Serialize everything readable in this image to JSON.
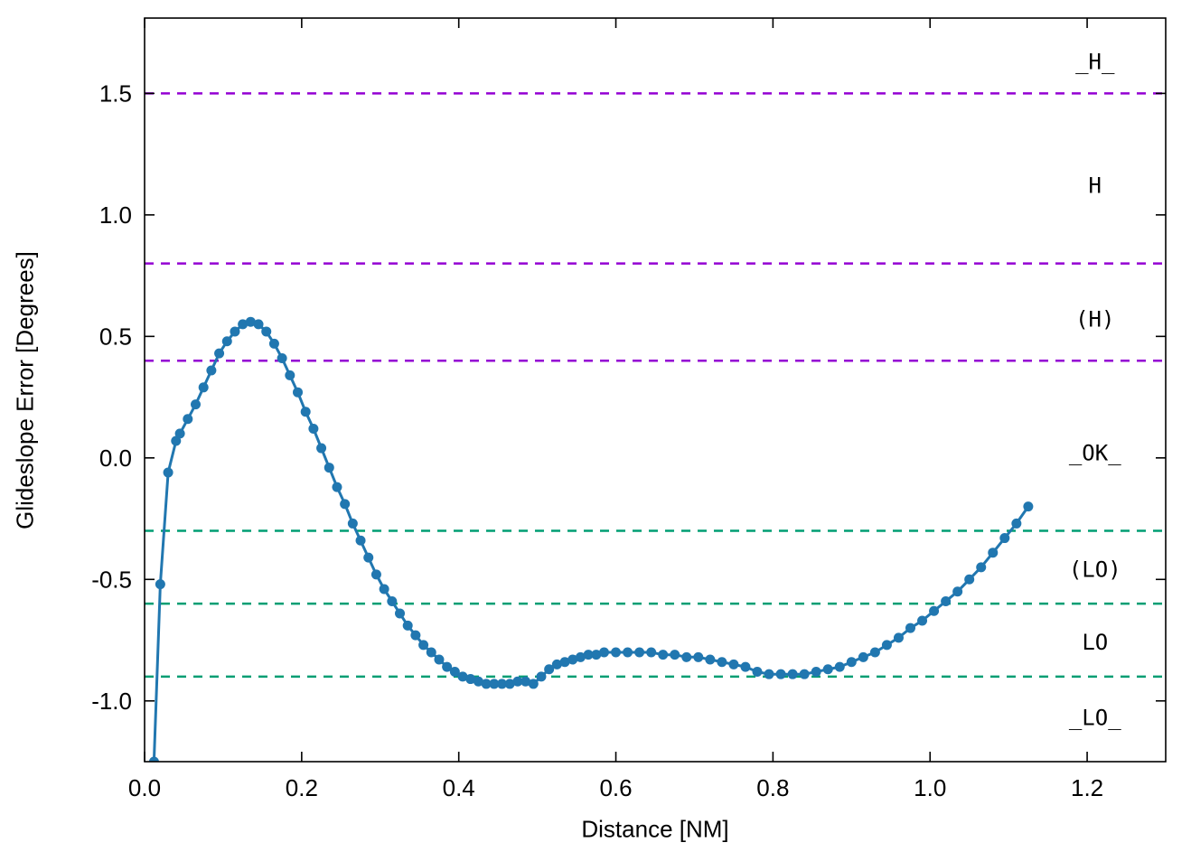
{
  "page": {
    "background": "#ffffff"
  },
  "chart_data": {
    "type": "line",
    "title": "",
    "xlabel": "Distance [NM]",
    "ylabel": "Glideslope Error [Degrees]",
    "xlim": [
      0,
      1.3
    ],
    "ylim": [
      -1.25,
      1.81
    ],
    "grid": false,
    "x_ticks": [
      {
        "v": 0.0,
        "label": "0.0"
      },
      {
        "v": 0.2,
        "label": "0.2"
      },
      {
        "v": 0.4,
        "label": "0.4"
      },
      {
        "v": 0.6,
        "label": "0.6"
      },
      {
        "v": 0.8,
        "label": "0.8"
      },
      {
        "v": 1.0,
        "label": "1.0"
      },
      {
        "v": 1.2,
        "label": "1.2"
      }
    ],
    "y_ticks": [
      {
        "v": -1.0,
        "label": "-1.0"
      },
      {
        "v": -0.5,
        "label": "-0.5"
      },
      {
        "v": 0.0,
        "label": "0.0"
      },
      {
        "v": 0.5,
        "label": "0.5"
      },
      {
        "v": 1.0,
        "label": "1.0"
      },
      {
        "v": 1.5,
        "label": "1.5"
      }
    ],
    "thresholds": [
      {
        "y": 1.5,
        "color": "#9400d3",
        "style": "dashed"
      },
      {
        "y": 0.8,
        "color": "#9400d3",
        "style": "dashed"
      },
      {
        "y": 0.4,
        "color": "#9400d3",
        "style": "dashed"
      },
      {
        "y": -0.3,
        "color": "#009e73",
        "style": "dashed"
      },
      {
        "y": -0.6,
        "color": "#009e73",
        "style": "dashed"
      },
      {
        "y": -0.9,
        "color": "#009e73",
        "style": "dashed"
      }
    ],
    "zone_labels": [
      {
        "text": "_H_",
        "x": 1.21,
        "y": 1.63
      },
      {
        "text": "H",
        "x": 1.21,
        "y": 1.12
      },
      {
        "text": "(H)",
        "x": 1.21,
        "y": 0.57
      },
      {
        "text": "_OK_",
        "x": 1.21,
        "y": 0.02
      },
      {
        "text": "(LO)",
        "x": 1.21,
        "y": -0.46
      },
      {
        "text": "LO",
        "x": 1.21,
        "y": -0.76
      },
      {
        "text": "_LO_",
        "x": 1.21,
        "y": -1.07
      }
    ],
    "series": [
      {
        "name": "glideslope-error",
        "color": "#2177b0",
        "marker": "circle",
        "points": [
          [
            0.012,
            -1.25
          ],
          [
            0.02,
            -0.52
          ],
          [
            0.03,
            -0.06
          ],
          [
            0.04,
            0.07
          ],
          [
            0.045,
            0.1
          ],
          [
            0.055,
            0.16
          ],
          [
            0.065,
            0.22
          ],
          [
            0.075,
            0.29
          ],
          [
            0.085,
            0.36
          ],
          [
            0.095,
            0.43
          ],
          [
            0.105,
            0.48
          ],
          [
            0.115,
            0.52
          ],
          [
            0.125,
            0.55
          ],
          [
            0.135,
            0.56
          ],
          [
            0.145,
            0.55
          ],
          [
            0.155,
            0.52
          ],
          [
            0.165,
            0.47
          ],
          [
            0.175,
            0.41
          ],
          [
            0.185,
            0.34
          ],
          [
            0.195,
            0.27
          ],
          [
            0.205,
            0.19
          ],
          [
            0.215,
            0.12
          ],
          [
            0.225,
            0.04
          ],
          [
            0.235,
            -0.04
          ],
          [
            0.245,
            -0.12
          ],
          [
            0.255,
            -0.19
          ],
          [
            0.265,
            -0.27
          ],
          [
            0.275,
            -0.34
          ],
          [
            0.285,
            -0.41
          ],
          [
            0.295,
            -0.48
          ],
          [
            0.305,
            -0.54
          ],
          [
            0.315,
            -0.59
          ],
          [
            0.325,
            -0.64
          ],
          [
            0.335,
            -0.69
          ],
          [
            0.345,
            -0.73
          ],
          [
            0.355,
            -0.77
          ],
          [
            0.365,
            -0.8
          ],
          [
            0.375,
            -0.83
          ],
          [
            0.385,
            -0.86
          ],
          [
            0.395,
            -0.88
          ],
          [
            0.405,
            -0.9
          ],
          [
            0.415,
            -0.91
          ],
          [
            0.425,
            -0.92
          ],
          [
            0.435,
            -0.93
          ],
          [
            0.445,
            -0.93
          ],
          [
            0.455,
            -0.93
          ],
          [
            0.465,
            -0.93
          ],
          [
            0.475,
            -0.92
          ],
          [
            0.485,
            -0.92
          ],
          [
            0.495,
            -0.93
          ],
          [
            0.505,
            -0.9
          ],
          [
            0.515,
            -0.87
          ],
          [
            0.525,
            -0.85
          ],
          [
            0.535,
            -0.84
          ],
          [
            0.545,
            -0.83
          ],
          [
            0.555,
            -0.82
          ],
          [
            0.565,
            -0.81
          ],
          [
            0.575,
            -0.81
          ],
          [
            0.585,
            -0.8
          ],
          [
            0.6,
            -0.8
          ],
          [
            0.615,
            -0.8
          ],
          [
            0.63,
            -0.8
          ],
          [
            0.645,
            -0.8
          ],
          [
            0.66,
            -0.81
          ],
          [
            0.675,
            -0.81
          ],
          [
            0.69,
            -0.82
          ],
          [
            0.705,
            -0.82
          ],
          [
            0.72,
            -0.83
          ],
          [
            0.735,
            -0.84
          ],
          [
            0.75,
            -0.85
          ],
          [
            0.765,
            -0.86
          ],
          [
            0.78,
            -0.88
          ],
          [
            0.795,
            -0.89
          ],
          [
            0.81,
            -0.89
          ],
          [
            0.825,
            -0.89
          ],
          [
            0.84,
            -0.89
          ],
          [
            0.855,
            -0.88
          ],
          [
            0.87,
            -0.87
          ],
          [
            0.885,
            -0.86
          ],
          [
            0.9,
            -0.84
          ],
          [
            0.915,
            -0.82
          ],
          [
            0.93,
            -0.8
          ],
          [
            0.945,
            -0.77
          ],
          [
            0.96,
            -0.74
          ],
          [
            0.975,
            -0.7
          ],
          [
            0.99,
            -0.67
          ],
          [
            1.005,
            -0.63
          ],
          [
            1.02,
            -0.59
          ],
          [
            1.035,
            -0.55
          ],
          [
            1.05,
            -0.5
          ],
          [
            1.065,
            -0.45
          ],
          [
            1.08,
            -0.39
          ],
          [
            1.095,
            -0.33
          ],
          [
            1.11,
            -0.27
          ],
          [
            1.125,
            -0.2
          ]
        ]
      }
    ]
  }
}
